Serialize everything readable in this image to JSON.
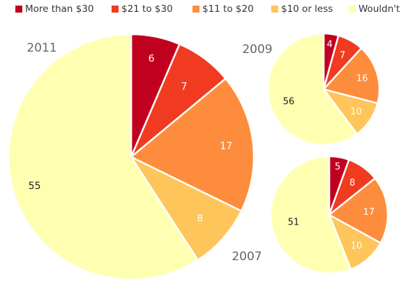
{
  "colors": {
    "more_than_30": "#c1001f",
    "21_to_30": "#f03b20",
    "11_to_20": "#fd8d3c",
    "10_or_less": "#fec55a",
    "wouldnt": "#ffffb2",
    "year_label": "#666666",
    "value_dark": "#222222",
    "value_light": "#ffffff"
  },
  "legend": [
    {
      "label": "More than $30",
      "color": "#c1001f"
    },
    {
      "label": "$21 to $30",
      "color": "#f03b20"
    },
    {
      "label": "$11 to $20",
      "color": "#fd8d3c"
    },
    {
      "label": "$10 or less",
      "color": "#fec55a"
    },
    {
      "label": "Wouldn't",
      "color": "#ffffb2"
    }
  ],
  "chart_data": [
    {
      "type": "pie",
      "title": "2011",
      "categories": [
        "More than $30",
        "$21 to $30",
        "$11 to $20",
        "$10 or less",
        "Wouldn't"
      ],
      "values": [
        6,
        7,
        17,
        8,
        55
      ]
    },
    {
      "type": "pie",
      "title": "2009",
      "categories": [
        "More than $30",
        "$21 to $30",
        "$11 to $20",
        "$10 or less",
        "Wouldn't"
      ],
      "values": [
        4,
        7,
        16,
        10,
        56
      ]
    },
    {
      "type": "pie",
      "title": "2007",
      "categories": [
        "More than $30",
        "$21 to $30",
        "$11 to $20",
        "$10 or less",
        "Wouldn't"
      ],
      "values": [
        5,
        8,
        17,
        10,
        51
      ]
    }
  ]
}
